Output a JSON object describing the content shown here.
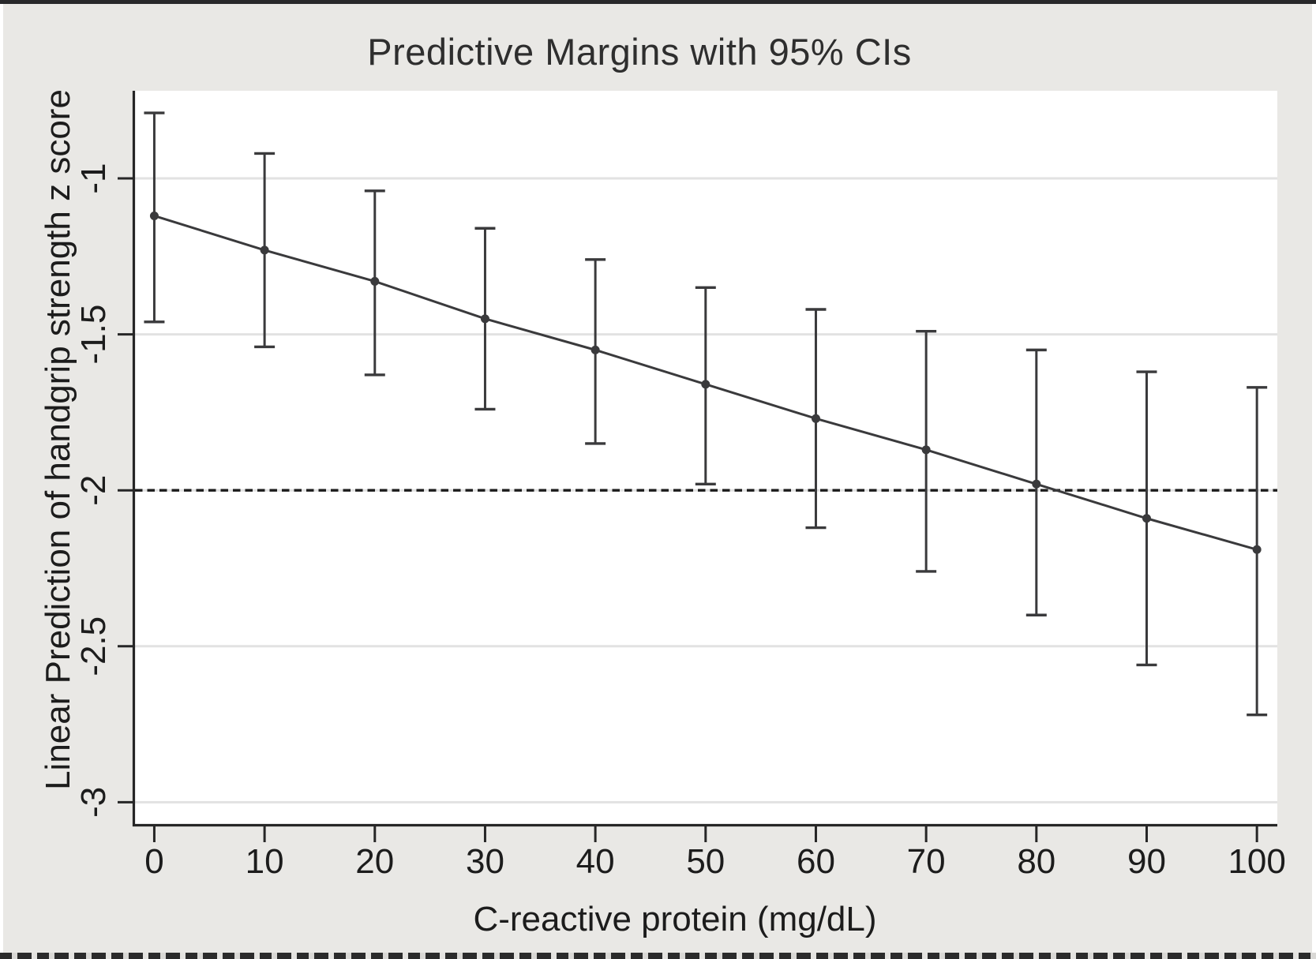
{
  "figure": {
    "title": "Predictive Margins with 95% CIs"
  },
  "chart_data": {
    "type": "line",
    "title": "Predictive Margins with 95% CIs",
    "xlabel": "C-reactive protein (mg/dL)",
    "ylabel": "Linear Prediction of handgrip strength z score",
    "x": [
      0,
      10,
      20,
      30,
      40,
      50,
      60,
      70,
      80,
      90,
      100
    ],
    "series": [
      {
        "name": "Predictive margin",
        "values": [
          -1.12,
          -1.23,
          -1.33,
          -1.45,
          -1.55,
          -1.66,
          -1.77,
          -1.87,
          -1.98,
          -2.09,
          -2.19
        ]
      }
    ],
    "ci_upper": [
      -0.79,
      -0.92,
      -1.04,
      -1.16,
      -1.26,
      -1.35,
      -1.42,
      -1.49,
      -1.55,
      -1.62,
      -1.67
    ],
    "ci_lower": [
      -1.46,
      -1.54,
      -1.63,
      -1.74,
      -1.85,
      -1.98,
      -2.12,
      -2.26,
      -2.4,
      -2.56,
      -2.72
    ],
    "reference_line_y": -2,
    "xticks": [
      "0",
      "10",
      "20",
      "30",
      "40",
      "50",
      "60",
      "70",
      "80",
      "90",
      "100"
    ],
    "yticks": [
      -1,
      -1.5,
      -2,
      -2.5,
      -3
    ],
    "ytick_labels": [
      "-1",
      "-1.5",
      "-2",
      "-2.5",
      "-3"
    ],
    "xlim": [
      -1.75,
      101.85
    ],
    "ylim": [
      -3.07,
      -0.719
    ],
    "grid": true,
    "legend_position": "none",
    "colors": {
      "figure_background": "#e9e8e5",
      "plot_background": "#ffffff",
      "gridline": "#e2e2e2",
      "axis": "#262626",
      "series": "#3a3a3c",
      "reference_line": "#1b1b1b",
      "text": "#1c1c1c"
    }
  }
}
